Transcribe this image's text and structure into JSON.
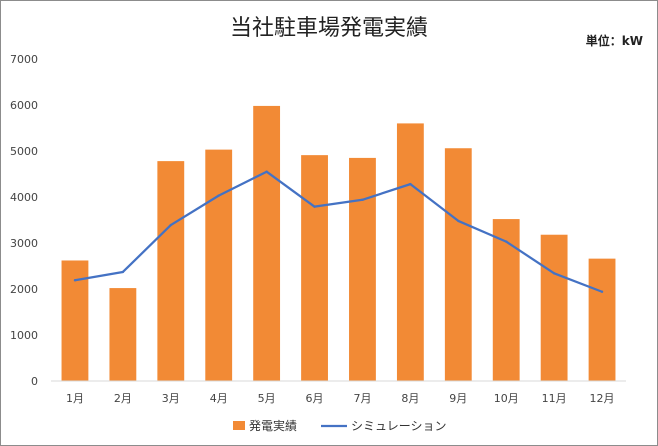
{
  "chart_data": {
    "type": "bar",
    "title": "当社駐車場発電実績",
    "unit_label": "単位：kW",
    "categories": [
      "1月",
      "2月",
      "3月",
      "4月",
      "5月",
      "6月",
      "7月",
      "8月",
      "9月",
      "10月",
      "11月",
      "12月"
    ],
    "ylim": [
      0,
      7000
    ],
    "yticks": [
      0,
      1000,
      2000,
      3000,
      4000,
      5000,
      6000,
      7000
    ],
    "grid": false,
    "legend_position": "bottom",
    "series": [
      {
        "name": "発電実績",
        "type": "bar",
        "color": "#f28a35",
        "values": [
          2620,
          2020,
          4780,
          5030,
          5980,
          4910,
          4850,
          5600,
          5060,
          3520,
          3180,
          2660
        ]
      },
      {
        "name": "シミュレーション",
        "type": "line",
        "color": "#4472c4",
        "values": [
          2190,
          2370,
          3390,
          4030,
          4550,
          3790,
          3940,
          4280,
          3480,
          3030,
          2340,
          1940
        ]
      }
    ]
  }
}
